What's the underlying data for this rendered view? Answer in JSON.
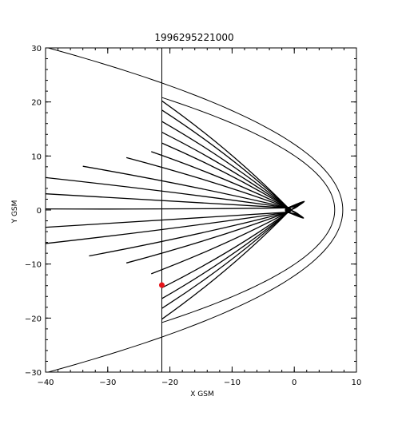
{
  "chart_data": {
    "type": "line",
    "title": "1996295221000",
    "xlabel": "X GSM",
    "ylabel": "Y GSM",
    "xlim": [
      -40,
      10
    ],
    "ylim": [
      -30,
      30
    ],
    "x_major_ticks": [
      -40,
      -30,
      -20,
      -10,
      0,
      10
    ],
    "y_major_ticks": [
      -30,
      -20,
      -10,
      0,
      10,
      20,
      30
    ],
    "x_minor_step": 2,
    "y_minor_step": 2,
    "grid": false,
    "axis_color": "#000000",
    "line_color": "#000000",
    "vertical_marker_x": -21.3,
    "magnetopause": {
      "nose_x": 7.8,
      "flank_width": 9.5,
      "x_min": -40
    },
    "bow": {
      "nose_x": 6.5,
      "flank_width": 7.8,
      "x_min": -21.3
    },
    "focus_point": [
      -1.0,
      0.0
    ],
    "field_lines": [
      {
        "x": -21.3,
        "y": 20.2,
        "bulge": 1.0
      },
      {
        "x": -21.3,
        "y": 18.5,
        "bulge": 0.9
      },
      {
        "x": -21.3,
        "y": 16.4,
        "bulge": 0.8
      },
      {
        "x": -21.3,
        "y": 14.4,
        "bulge": 0.7
      },
      {
        "x": -21.3,
        "y": 12.4,
        "bulge": 0.6
      },
      {
        "x": -23.0,
        "y": 10.8,
        "bulge": 0.5
      },
      {
        "x": -27.0,
        "y": 9.7,
        "bulge": 0.4
      },
      {
        "x": -34.0,
        "y": 8.1,
        "bulge": 0.3
      },
      {
        "x": -40.0,
        "y": 6.0,
        "bulge": 0.2
      },
      {
        "x": -40.0,
        "y": 3.0,
        "bulge": 0.1
      },
      {
        "x": -40.0,
        "y": 0.2,
        "bulge": 0.0
      },
      {
        "x": -40.0,
        "y": -3.2,
        "bulge": 0.1
      },
      {
        "x": -40.0,
        "y": -6.2,
        "bulge": 0.2
      },
      {
        "x": -33.0,
        "y": -8.5,
        "bulge": 0.3
      },
      {
        "x": -27.0,
        "y": -9.8,
        "bulge": 0.4
      },
      {
        "x": -23.0,
        "y": -11.8,
        "bulge": 0.5
      },
      {
        "x": -21.3,
        "y": -14.4,
        "bulge": 0.6
      },
      {
        "x": -21.3,
        "y": -16.4,
        "bulge": 0.7
      },
      {
        "x": -21.3,
        "y": -18.2,
        "bulge": 0.8
      },
      {
        "x": -21.3,
        "y": -20.2,
        "bulge": 0.9
      }
    ],
    "highlight_point": {
      "x": -21.3,
      "y": -13.9,
      "color": "#e8141b"
    }
  }
}
